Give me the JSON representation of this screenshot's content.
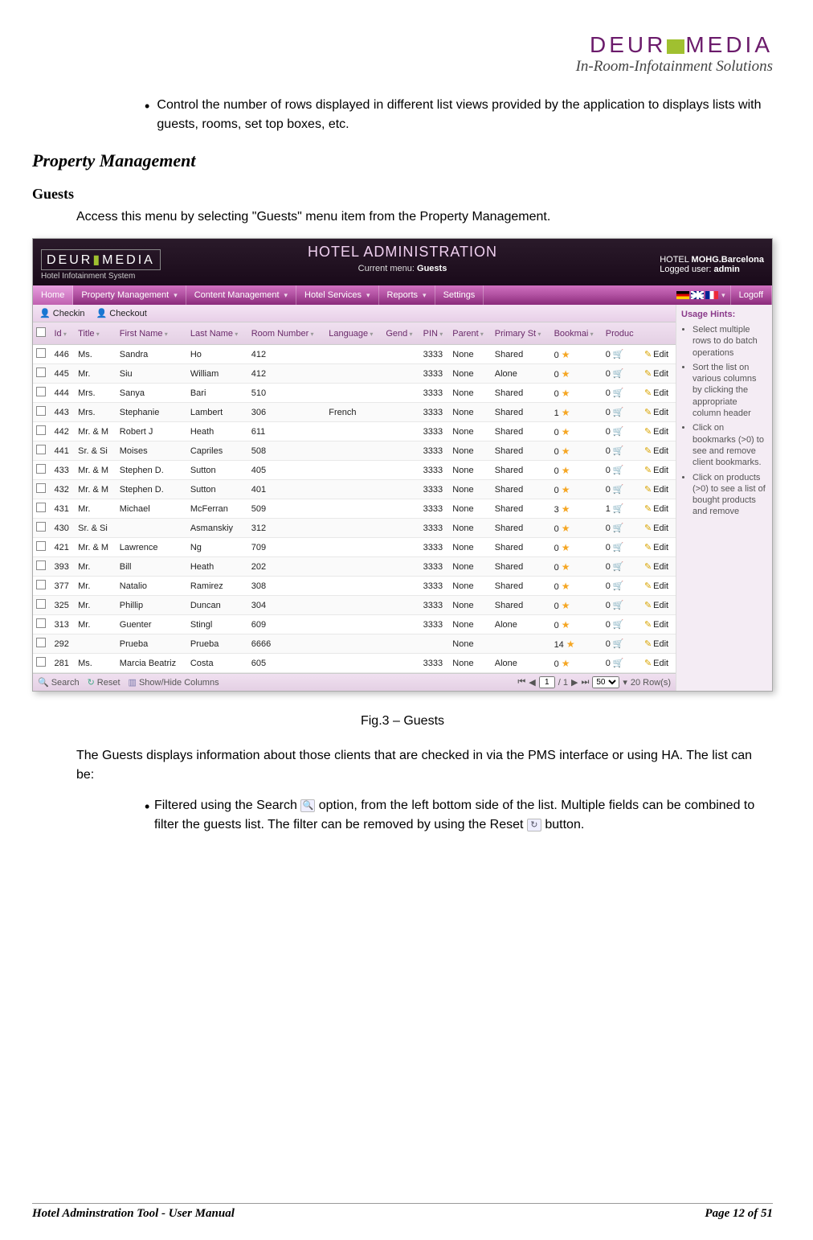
{
  "doc": {
    "brand": "DEUROMEDIA",
    "brand_sub": "In-Room-Infotainment Solutions",
    "bullet1": "Control the number of rows displayed in different list views provided by the application to displays lists with guests, rooms, set top boxes, etc.",
    "h2": "Property Management",
    "h3": "Guests",
    "intro": "Access this menu by selecting \"Guests\" menu item from the Property Management.",
    "fig_caption": "Fig.3 – Guests",
    "para2": "The Guests displays information about those clients that are checked in via the PMS interface or using HA. The list can be:",
    "bullet2a": "Filtered using the Search ",
    "bullet2b": " option, from the left bottom side of the list. Multiple fields can be combined to filter the guests list. The filter can be removed by using the Reset ",
    "bullet2c": " button.",
    "footer_left": "Hotel Adminstration Tool - User Manual",
    "footer_right": "Page 12 of 51"
  },
  "app": {
    "logo": "DEUROMEDIA",
    "logo_sub": "Hotel Infotainment System",
    "title": "HOTEL  ADMINISTRATION",
    "current_menu_label": "Current menu:",
    "current_menu_value": "Guests",
    "hotel_label": "HOTEL",
    "hotel_value": "MOHG.Barcelona",
    "user_label": "Logged user:",
    "user_value": "admin",
    "menu": [
      "Home",
      "Property Management",
      "Content Management",
      "Hotel Services",
      "Reports",
      "Settings"
    ],
    "logoff": "Logoff",
    "toolbar": {
      "checkin": "Checkin",
      "checkout": "Checkout"
    },
    "columns": [
      "",
      "Id",
      "Title",
      "First Name",
      "Last Name",
      "Room Number",
      "Language",
      "Gend",
      "PIN",
      "Parent",
      "Primary St",
      "Bookmai",
      "Produc",
      ""
    ],
    "rows": [
      {
        "id": "446",
        "title": "Ms.",
        "fn": "Sandra",
        "ln": "Ho",
        "room": "412",
        "lang": "",
        "gend": "",
        "pin": "3333",
        "parent": "None",
        "prim": "Shared",
        "bm": "0",
        "pr": "0"
      },
      {
        "id": "445",
        "title": "Mr.",
        "fn": "Siu",
        "ln": "William",
        "room": "412",
        "lang": "",
        "gend": "",
        "pin": "3333",
        "parent": "None",
        "prim": "Alone",
        "bm": "0",
        "pr": "0"
      },
      {
        "id": "444",
        "title": "Mrs.",
        "fn": "Sanya",
        "ln": "Bari",
        "room": "510",
        "lang": "",
        "gend": "",
        "pin": "3333",
        "parent": "None",
        "prim": "Shared",
        "bm": "0",
        "pr": "0"
      },
      {
        "id": "443",
        "title": "Mrs.",
        "fn": "Stephanie",
        "ln": "Lambert",
        "room": "306",
        "lang": "French",
        "gend": "",
        "pin": "3333",
        "parent": "None",
        "prim": "Shared",
        "bm": "1",
        "pr": "0"
      },
      {
        "id": "442",
        "title": "Mr. & M",
        "fn": "Robert J",
        "ln": "Heath",
        "room": "611",
        "lang": "",
        "gend": "",
        "pin": "3333",
        "parent": "None",
        "prim": "Shared",
        "bm": "0",
        "pr": "0"
      },
      {
        "id": "441",
        "title": "Sr. & Si",
        "fn": "Moises",
        "ln": "Capriles",
        "room": "508",
        "lang": "",
        "gend": "",
        "pin": "3333",
        "parent": "None",
        "prim": "Shared",
        "bm": "0",
        "pr": "0"
      },
      {
        "id": "433",
        "title": "Mr. & M",
        "fn": "Stephen D.",
        "ln": "Sutton",
        "room": "405",
        "lang": "",
        "gend": "",
        "pin": "3333",
        "parent": "None",
        "prim": "Shared",
        "bm": "0",
        "pr": "0"
      },
      {
        "id": "432",
        "title": "Mr. & M",
        "fn": "Stephen D.",
        "ln": "Sutton",
        "room": "401",
        "lang": "",
        "gend": "",
        "pin": "3333",
        "parent": "None",
        "prim": "Shared",
        "bm": "0",
        "pr": "0"
      },
      {
        "id": "431",
        "title": "Mr.",
        "fn": "Michael",
        "ln": "McFerran",
        "room": "509",
        "lang": "",
        "gend": "",
        "pin": "3333",
        "parent": "None",
        "prim": "Shared",
        "bm": "3",
        "pr": "1"
      },
      {
        "id": "430",
        "title": "Sr. & Si",
        "fn": "",
        "ln": "Asmanskiy",
        "room": "312",
        "lang": "",
        "gend": "",
        "pin": "3333",
        "parent": "None",
        "prim": "Shared",
        "bm": "0",
        "pr": "0"
      },
      {
        "id": "421",
        "title": "Mr. & M",
        "fn": "Lawrence",
        "ln": "Ng",
        "room": "709",
        "lang": "",
        "gend": "",
        "pin": "3333",
        "parent": "None",
        "prim": "Shared",
        "bm": "0",
        "pr": "0"
      },
      {
        "id": "393",
        "title": "Mr.",
        "fn": "Bill",
        "ln": "Heath",
        "room": "202",
        "lang": "",
        "gend": "",
        "pin": "3333",
        "parent": "None",
        "prim": "Shared",
        "bm": "0",
        "pr": "0"
      },
      {
        "id": "377",
        "title": "Mr.",
        "fn": "Natalio",
        "ln": "Ramirez",
        "room": "308",
        "lang": "",
        "gend": "",
        "pin": "3333",
        "parent": "None",
        "prim": "Shared",
        "bm": "0",
        "pr": "0"
      },
      {
        "id": "325",
        "title": "Mr.",
        "fn": "Phillip",
        "ln": "Duncan",
        "room": "304",
        "lang": "",
        "gend": "",
        "pin": "3333",
        "parent": "None",
        "prim": "Shared",
        "bm": "0",
        "pr": "0"
      },
      {
        "id": "313",
        "title": "Mr.",
        "fn": "Guenter",
        "ln": "Stingl",
        "room": "609",
        "lang": "",
        "gend": "",
        "pin": "3333",
        "parent": "None",
        "prim": "Alone",
        "bm": "0",
        "pr": "0"
      },
      {
        "id": "292",
        "title": "",
        "fn": "Prueba",
        "ln": "Prueba",
        "room": "6666",
        "lang": "",
        "gend": "",
        "pin": "",
        "parent": "None",
        "prim": "",
        "bm": "14",
        "pr": "0"
      },
      {
        "id": "281",
        "title": "Ms.",
        "fn": "Marcia Beatriz",
        "ln": "Costa",
        "room": "605",
        "lang": "",
        "gend": "",
        "pin": "3333",
        "parent": "None",
        "prim": "Alone",
        "bm": "0",
        "pr": "0"
      }
    ],
    "edit_label": "Edit",
    "footerbar": {
      "search": "Search",
      "reset": "Reset",
      "showhide": "Show/Hide Columns",
      "page_current": "1",
      "page_sep": "/ 1",
      "page_size": "50",
      "rows_label": "20 Row(s)"
    },
    "hints_title": "Usage Hints:",
    "hints": [
      "Select multiple rows to do batch operations",
      "Sort the list on various columns by clicking the appropriate column header",
      "Click on bookmarks (>0) to see and remove client bookmarks.",
      "Click on products (>0) to see a list of bought products and remove"
    ]
  }
}
